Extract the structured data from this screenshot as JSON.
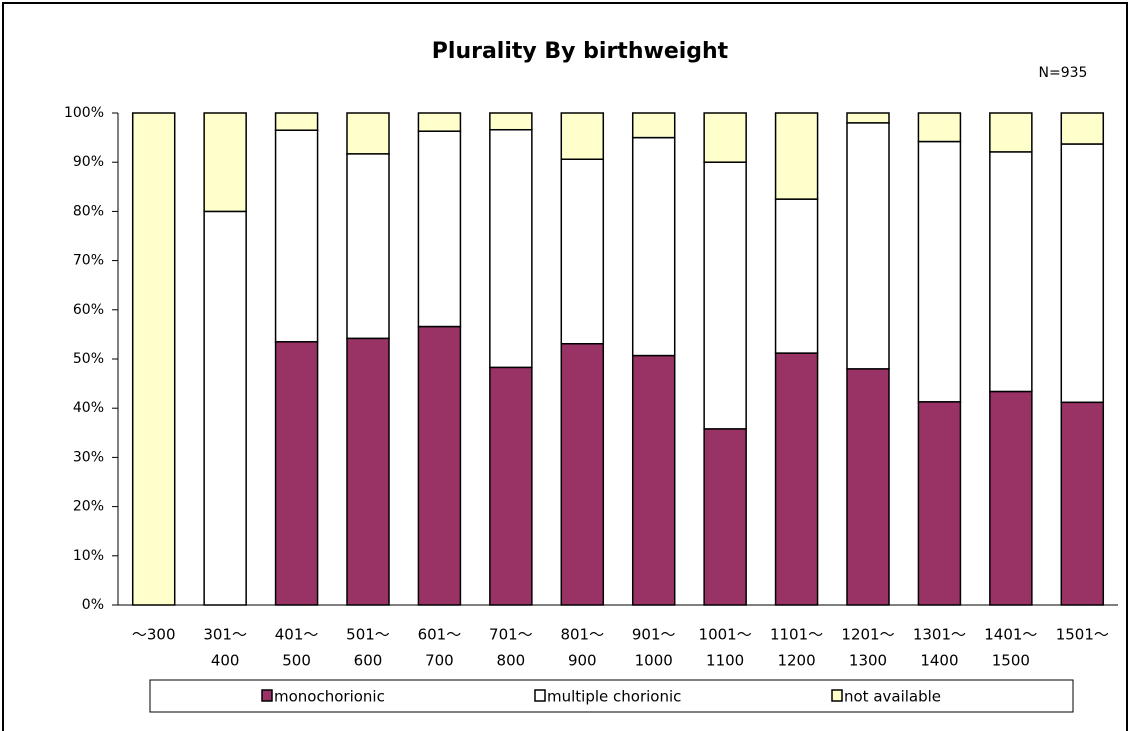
{
  "chart_data": {
    "type": "stacked_bar",
    "title": "Plurality By birthweight",
    "annotation": "N=935",
    "categories": [
      [
        "～300"
      ],
      [
        "301～",
        "400"
      ],
      [
        "401～",
        "500"
      ],
      [
        "501～",
        "600"
      ],
      [
        "601～",
        "700"
      ],
      [
        "701～",
        "800"
      ],
      [
        "801～",
        "900"
      ],
      [
        "901～",
        "1000"
      ],
      [
        "1001～",
        "1100"
      ],
      [
        "1101～",
        "1200"
      ],
      [
        "1201～",
        "1300"
      ],
      [
        "1301～",
        "1400"
      ],
      [
        "1401～",
        "1500"
      ],
      [
        "1501～"
      ]
    ],
    "series": [
      {
        "name": "monochorionic",
        "color": "#993366",
        "values": [
          0,
          0,
          53.5,
          54.2,
          56.6,
          48.3,
          53.1,
          50.7,
          35.8,
          51.2,
          48,
          41.3,
          43.4,
          41.2
        ]
      },
      {
        "name": "multiple chorionic",
        "color": "#ffffff",
        "values": [
          0,
          80,
          43,
          37.5,
          39.7,
          48.3,
          37.5,
          44.3,
          54.2,
          31.3,
          50,
          52.9,
          48.7,
          52.5
        ]
      },
      {
        "name": "not available",
        "color": "#ffffcc",
        "values": [
          100,
          20,
          3.5,
          8.3,
          3.7,
          3.4,
          9.4,
          5,
          10,
          17.5,
          2,
          5.8,
          7.9,
          6.3
        ]
      }
    ],
    "ylim": [
      0,
      100
    ],
    "yticks": [
      {
        "value": 0,
        "label": "0%"
      },
      {
        "value": 10,
        "label": "10%"
      },
      {
        "value": 20,
        "label": "20%"
      },
      {
        "value": 30,
        "label": "30%"
      },
      {
        "value": 40,
        "label": "40%"
      },
      {
        "value": 50,
        "label": "50%"
      },
      {
        "value": 60,
        "label": "60%"
      },
      {
        "value": 70,
        "label": "70%"
      },
      {
        "value": 80,
        "label": "80%"
      },
      {
        "value": 90,
        "label": "90%"
      },
      {
        "value": 100,
        "label": "100%"
      }
    ],
    "grid": false,
    "legend": "bottom"
  }
}
